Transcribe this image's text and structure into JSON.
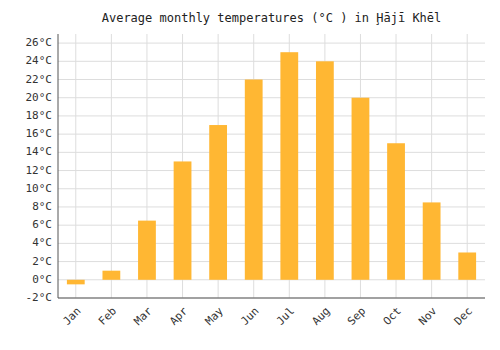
{
  "chart_data": {
    "type": "bar",
    "title": "Average monthly temperatures (°C ) in Ḩājī Khēl",
    "categories": [
      "Jan",
      "Feb",
      "Mar",
      "Apr",
      "May",
      "Jun",
      "Jul",
      "Aug",
      "Sep",
      "Oct",
      "Nov",
      "Dec"
    ],
    "values": [
      -0.5,
      1.0,
      6.5,
      13.0,
      17.0,
      22.0,
      25.0,
      24.0,
      20.0,
      15.0,
      8.5,
      3.0
    ],
    "color": "#FFB733",
    "ylim": [
      -2,
      27
    ],
    "yticks": [
      {
        "value": -2,
        "label": "-2°C"
      },
      {
        "value": 0,
        "label": "0°C"
      },
      {
        "value": 2,
        "label": "2°C"
      },
      {
        "value": 4,
        "label": "4°C"
      },
      {
        "value": 6,
        "label": "6°C"
      },
      {
        "value": 8,
        "label": "8°C"
      },
      {
        "value": 10,
        "label": "10°C"
      },
      {
        "value": 12,
        "label": "12°C"
      },
      {
        "value": 14,
        "label": "14°C"
      },
      {
        "value": 16,
        "label": "16°C"
      },
      {
        "value": 18,
        "label": "18°C"
      },
      {
        "value": 20,
        "label": "20°C"
      },
      {
        "value": 22,
        "label": "22°C"
      },
      {
        "value": 24,
        "label": "24°C"
      },
      {
        "value": 26,
        "label": "26°C"
      }
    ],
    "grid": true
  }
}
